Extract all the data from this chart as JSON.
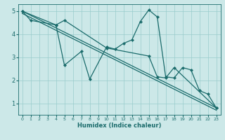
{
  "xlabel": "Humidex (Indice chaleur)",
  "bg_color": "#cce8e8",
  "grid_color": "#99cccc",
  "line_color": "#1a6b6b",
  "xlim": [
    -0.5,
    23.5
  ],
  "ylim": [
    0.5,
    5.3
  ],
  "xticks": [
    0,
    1,
    2,
    3,
    4,
    5,
    6,
    7,
    8,
    9,
    10,
    11,
    12,
    13,
    14,
    15,
    16,
    17,
    18,
    19,
    20,
    21,
    22,
    23
  ],
  "yticks": [
    1,
    2,
    3,
    4,
    5
  ],
  "series": [
    {
      "x": [
        0,
        1,
        4,
        5,
        7,
        8,
        10,
        11,
        12,
        13,
        14,
        15,
        16,
        17,
        18,
        19,
        20,
        21,
        22,
        23
      ],
      "y": [
        5.0,
        4.6,
        4.4,
        2.65,
        3.25,
        2.05,
        3.45,
        3.35,
        3.6,
        3.75,
        4.55,
        5.05,
        4.75,
        2.15,
        2.1,
        2.55,
        2.45,
        1.55,
        1.4,
        0.8
      ],
      "markers": true
    },
    {
      "x": [
        0,
        4,
        5,
        10,
        15,
        16,
        17,
        18,
        23
      ],
      "y": [
        5.0,
        4.4,
        4.6,
        3.4,
        3.05,
        2.15,
        2.1,
        2.55,
        0.8
      ],
      "markers": true
    },
    {
      "x": [
        0,
        23
      ],
      "y": [
        5.0,
        0.8
      ],
      "markers": false
    },
    {
      "x": [
        0,
        23
      ],
      "y": [
        4.9,
        0.7
      ],
      "markers": false
    }
  ]
}
